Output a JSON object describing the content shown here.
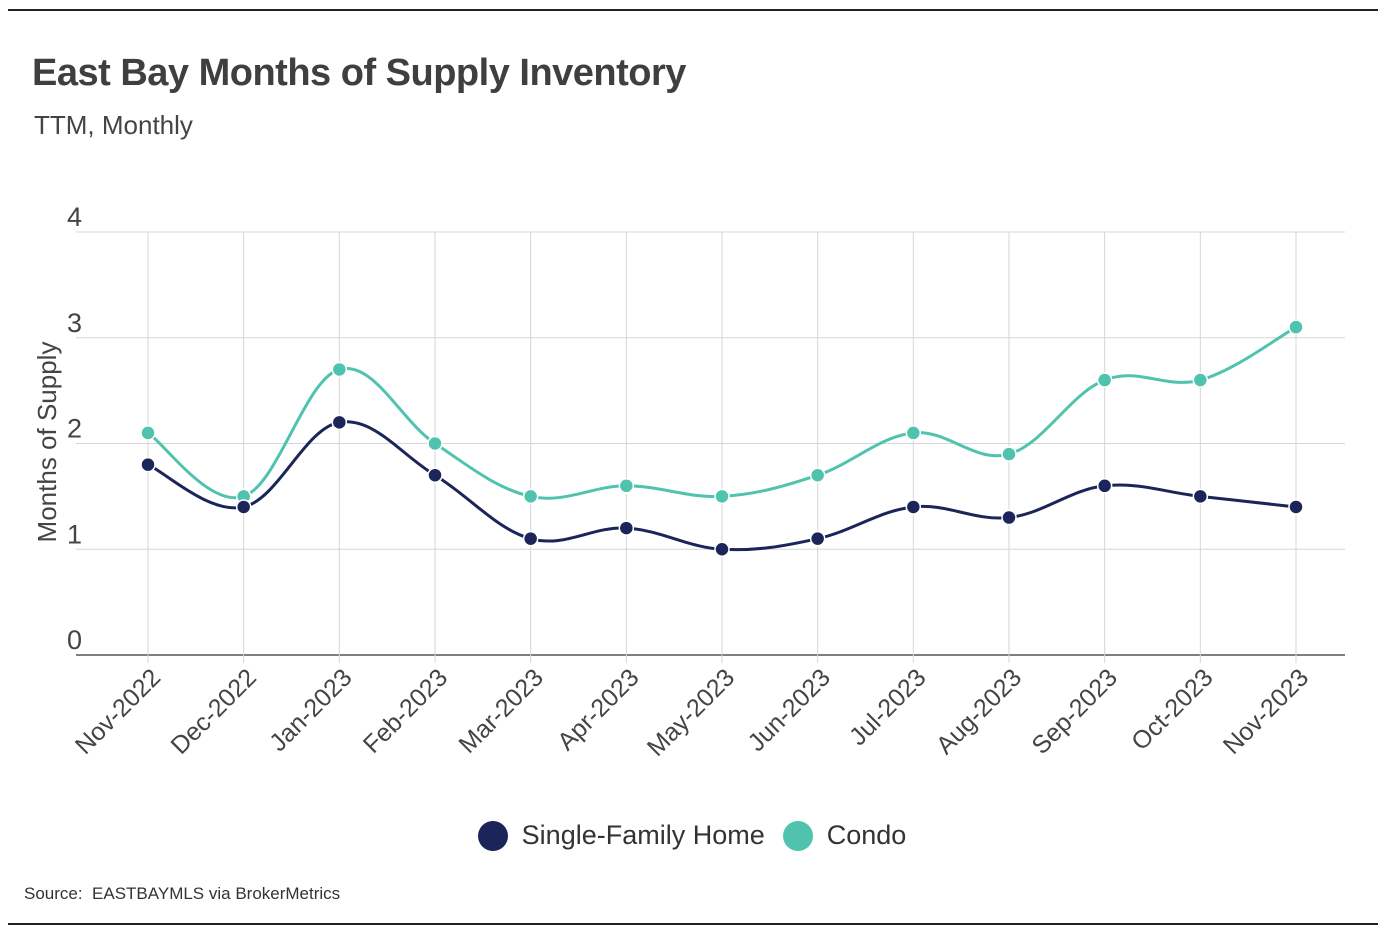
{
  "title": "East Bay Months of Supply Inventory",
  "subtitle": "TTM, Monthly",
  "source": "Source:  EASTBAYMLS via BrokerMetrics",
  "colors": {
    "single_family": "#1b2559",
    "condo": "#4fc3ae",
    "grid": "#d6d6d6",
    "axis": "#555555"
  },
  "legend": [
    {
      "label": "Single-Family Home",
      "color": "#1b2559"
    },
    {
      "label": "Condo",
      "color": "#4fc3ae"
    }
  ],
  "chart_data": {
    "type": "line",
    "title": "East Bay Months of Supply Inventory",
    "subtitle": "TTM, Monthly",
    "xlabel": "",
    "ylabel": "Months of Supply",
    "ylim": [
      0,
      4
    ],
    "yticks": [
      "0",
      "1",
      "2",
      "3",
      "4"
    ],
    "grid": true,
    "legend_position": "bottom",
    "categories": [
      "Nov-2022",
      "Dec-2022",
      "Jan-2023",
      "Feb-2023",
      "Mar-2023",
      "Apr-2023",
      "May-2023",
      "Jun-2023",
      "Jul-2023",
      "Aug-2023",
      "Sep-2023",
      "Oct-2023",
      "Nov-2023"
    ],
    "series": [
      {
        "name": "Single-Family Home",
        "color": "#1b2559",
        "values": [
          1.8,
          1.4,
          2.2,
          1.7,
          1.1,
          1.2,
          1.0,
          1.1,
          1.4,
          1.3,
          1.6,
          1.5,
          1.4
        ]
      },
      {
        "name": "Condo",
        "color": "#4fc3ae",
        "values": [
          2.1,
          1.5,
          2.7,
          2.0,
          1.5,
          1.6,
          1.5,
          1.7,
          2.1,
          1.9,
          2.6,
          2.6,
          3.1
        ]
      }
    ]
  }
}
